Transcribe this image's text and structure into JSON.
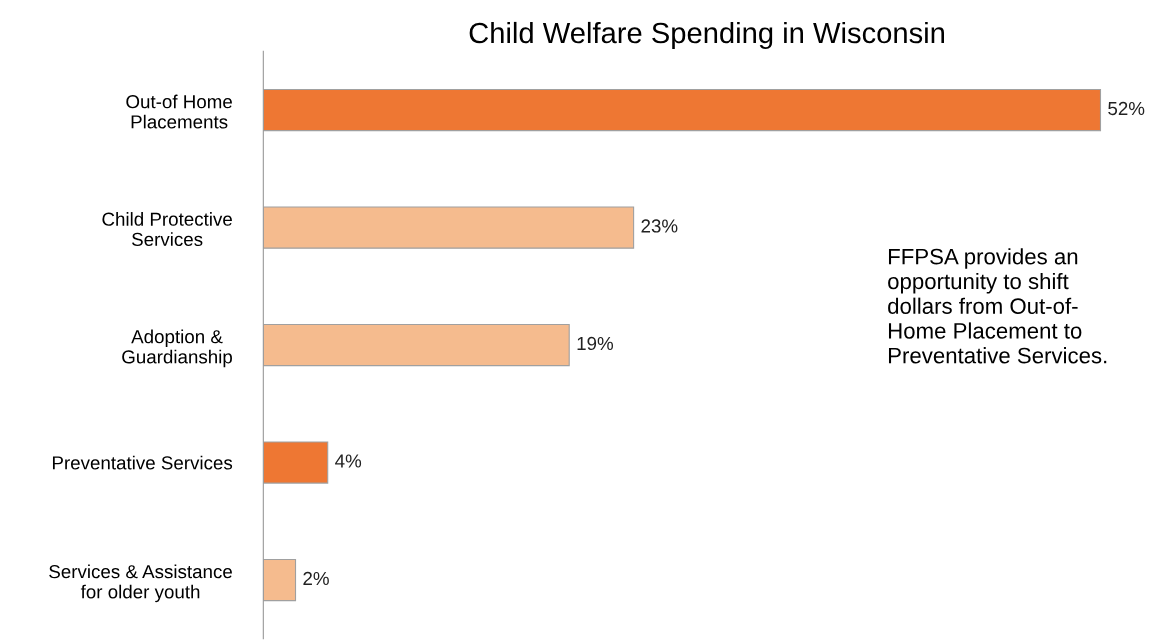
{
  "chart_data": {
    "type": "bar",
    "orientation": "horizontal",
    "title": "Child Welfare Spending in Wisconsin",
    "categories": [
      "Out-of Home\nPlacements",
      "Child Protective\nServices",
      "Adoption &\nGuardianship",
      "Preventative Services",
      "Services & Assistance\nfor older youth"
    ],
    "values": [
      52,
      23,
      19,
      4,
      2
    ],
    "colors": [
      "#ee7733",
      "#f5bb8e",
      "#f5bb8e",
      "#ee7733",
      "#f5bb8e"
    ],
    "value_labels": [
      "52%",
      "23%",
      "19%",
      "4%",
      "2%"
    ],
    "annotations": [
      "FFPSA provides an\nopportunity to shift\ndollars from Out-of-\nHome Placement to\nPreventative Services."
    ],
    "grid": false,
    "legend": false
  }
}
